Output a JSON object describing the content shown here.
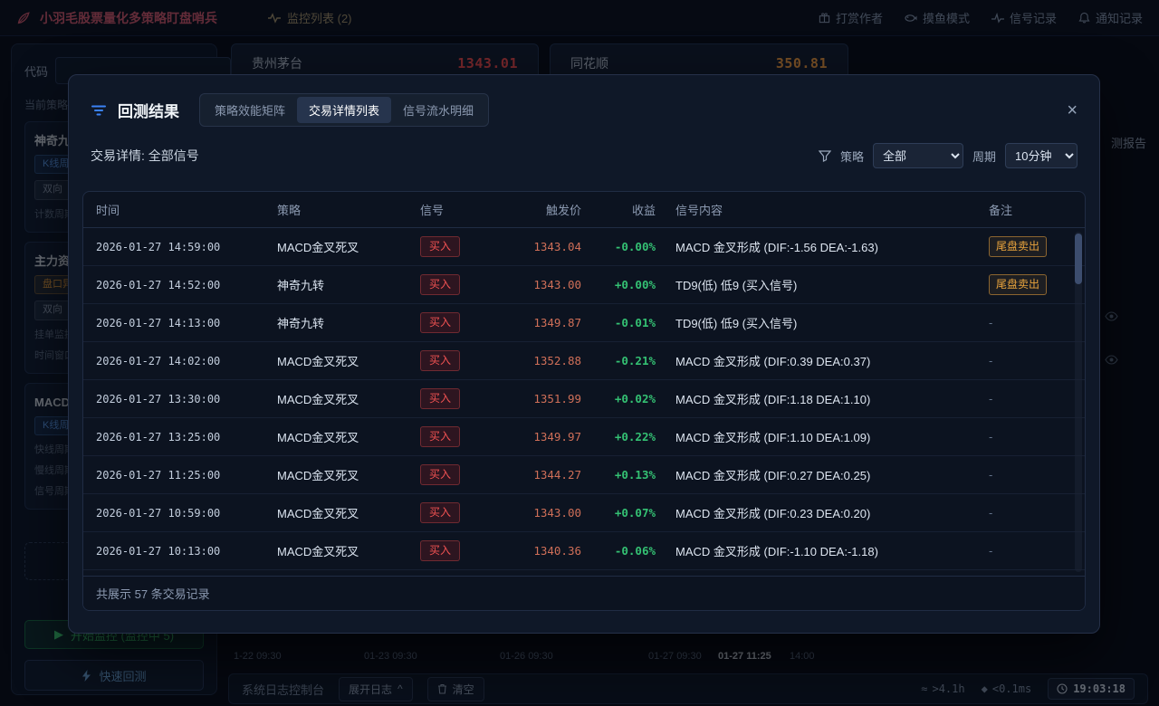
{
  "colors": {
    "app_title_red": "#d5586a",
    "price_red": "#ff4d4d",
    "price_orange": "#ffa23e",
    "buy_badge_red": "#f05252",
    "profit_green": "#34c173",
    "trigger_price": "#cf6f58",
    "tail_badge_orange": "#e8a33d",
    "modal_bg": "#0f1828",
    "accent_blue": "#3b82f6"
  },
  "topbar": {
    "app_title": "小羽毛股票量化多策略盯盘哨兵",
    "monitor_list": "监控列表 (2)",
    "actions": [
      "打赏作者",
      "摸鱼模式",
      "信号记录",
      "通知记录"
    ]
  },
  "watch_cards": [
    {
      "name": "贵州茅台",
      "price": "1343.01"
    },
    {
      "name": "同花顺",
      "price": "350.81"
    }
  ],
  "sidebar": {
    "code_label": "代码",
    "current_strategy_label": "当前策略",
    "strategies": [
      {
        "title": "神奇九转",
        "badge1": "K线周期",
        "badge2": "双向",
        "line1": "计数周期"
      },
      {
        "title": "主力资金",
        "badge1": "盘口异动",
        "badge2": "双向",
        "line1": "挂单监控",
        "line2": "时间窗口"
      },
      {
        "title": "MACD金叉死叉",
        "badge1": "K线周期",
        "line1": "快线周期",
        "line2": "慢线周期",
        "line3": "信号周期"
      }
    ],
    "add_box": "+",
    "start_button": "开始监控 (监控中 5)",
    "start_icon": "▶",
    "quick_backtest": "快速回测"
  },
  "chart": {
    "time_axis": [
      "1-22 09:30",
      "01-23 09:30",
      "01-26 09:30",
      "01-27 09:30",
      "01-27 11:25",
      "14:00"
    ],
    "report_tab": "测报告"
  },
  "statusbar": {
    "log_console": "系统日志控制台",
    "expand_log": "展开日志",
    "expand_caret": "^",
    "clear": "清空",
    "uptime_icon": "≈",
    "uptime": ">4.1h",
    "latency_icon": "◆",
    "latency": "<0.1ms",
    "clock": "19:03:18"
  },
  "modal": {
    "title": "回测结果",
    "close": "×",
    "tabs": [
      "策略效能矩阵",
      "交易详情列表",
      "信号流水明细"
    ],
    "active_tab": 1,
    "subtitle": "交易详情: 全部信号",
    "filter": {
      "strategy_label": "策略",
      "strategy_value": "全部",
      "period_label": "周期",
      "period_value": "10分钟"
    },
    "table": {
      "headers": [
        "时间",
        "策略",
        "信号",
        "触发价",
        "收益",
        "信号内容",
        "备注"
      ],
      "rows": [
        {
          "time": "2026-01-27 14:59:00",
          "strategy": "MACD金叉死叉",
          "signal": "买入",
          "price": "1343.04",
          "profit": "-0.00%",
          "content": "MACD 金叉形成 (DIF:-1.56 DEA:-1.63)",
          "note": "尾盘卖出",
          "note_badge": true
        },
        {
          "time": "2026-01-27 14:52:00",
          "strategy": "神奇九转",
          "signal": "买入",
          "price": "1343.00",
          "profit": "+0.00%",
          "content": "TD9(低) 低9 (买入信号)",
          "note": "尾盘卖出",
          "note_badge": true
        },
        {
          "time": "2026-01-27 14:13:00",
          "strategy": "神奇九转",
          "signal": "买入",
          "price": "1349.87",
          "profit": "-0.01%",
          "content": "TD9(低) 低9 (买入信号)",
          "note": "-",
          "note_badge": false
        },
        {
          "time": "2026-01-27 14:02:00",
          "strategy": "MACD金叉死叉",
          "signal": "买入",
          "price": "1352.88",
          "profit": "-0.21%",
          "content": "MACD 金叉形成 (DIF:0.39 DEA:0.37)",
          "note": "-",
          "note_badge": false
        },
        {
          "time": "2026-01-27 13:30:00",
          "strategy": "MACD金叉死叉",
          "signal": "买入",
          "price": "1351.99",
          "profit": "+0.02%",
          "content": "MACD 金叉形成 (DIF:1.18 DEA:1.10)",
          "note": "-",
          "note_badge": false
        },
        {
          "time": "2026-01-27 13:25:00",
          "strategy": "MACD金叉死叉",
          "signal": "买入",
          "price": "1349.97",
          "profit": "+0.22%",
          "content": "MACD 金叉形成 (DIF:1.10 DEA:1.09)",
          "note": "-",
          "note_badge": false
        },
        {
          "time": "2026-01-27 11:25:00",
          "strategy": "MACD金叉死叉",
          "signal": "买入",
          "price": "1344.27",
          "profit": "+0.13%",
          "content": "MACD 金叉形成 (DIF:0.27 DEA:0.25)",
          "note": "-",
          "note_badge": false
        },
        {
          "time": "2026-01-27 10:59:00",
          "strategy": "MACD金叉死叉",
          "signal": "买入",
          "price": "1343.00",
          "profit": "+0.07%",
          "content": "MACD 金叉形成 (DIF:0.23 DEA:0.20)",
          "note": "-",
          "note_badge": false
        },
        {
          "time": "2026-01-27 10:13:00",
          "strategy": "MACD金叉死叉",
          "signal": "买入",
          "price": "1340.36",
          "profit": "-0.06%",
          "content": "MACD 金叉形成 (DIF:-1.10 DEA:-1.18)",
          "note": "-",
          "note_badge": false
        }
      ],
      "footer": "共展示 57 条交易记录"
    }
  }
}
